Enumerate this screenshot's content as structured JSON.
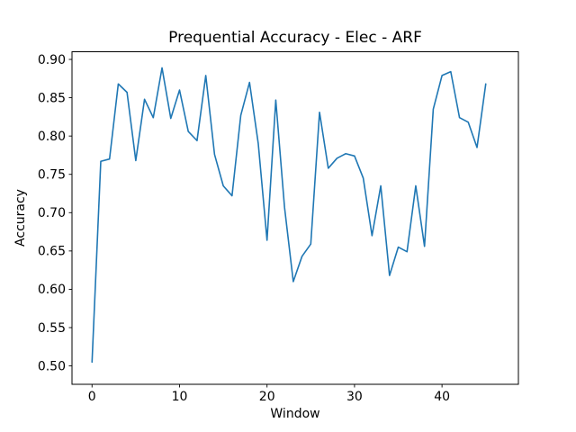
{
  "figure": {
    "background": "#ffffff",
    "spine_color": "#000000",
    "tick_color": "#000000"
  },
  "chart_data": {
    "type": "line",
    "title": "Prequential Accuracy - Elec - ARF",
    "xlabel": "Window",
    "ylabel": "Accuracy",
    "grid": false,
    "legend": null,
    "xlim": [
      -2.29,
      48.73
    ],
    "ylim": [
      0.476,
      0.91
    ],
    "xticks": [
      0,
      10,
      20,
      30,
      40
    ],
    "yticks": [
      0.5,
      0.55,
      0.6,
      0.65,
      0.7,
      0.75,
      0.8,
      0.85,
      0.9
    ],
    "x": [
      0,
      1,
      2,
      3,
      4,
      5,
      6,
      7,
      8,
      9,
      10,
      11,
      12,
      13,
      14,
      15,
      16,
      17,
      18,
      19,
      20,
      21,
      22,
      23,
      24,
      25,
      26,
      27,
      28,
      29,
      30,
      31,
      32,
      33,
      34,
      35,
      36,
      37,
      38,
      39,
      40,
      41,
      42,
      43,
      44,
      45
    ],
    "series": [
      {
        "name": "prequential-accuracy",
        "color": "#1f77b4",
        "values": [
          0.505,
          0.767,
          0.77,
          0.868,
          0.857,
          0.768,
          0.848,
          0.824,
          0.889,
          0.823,
          0.86,
          0.806,
          0.794,
          0.879,
          0.776,
          0.735,
          0.722,
          0.827,
          0.87,
          0.79,
          0.664,
          0.847,
          0.707,
          0.61,
          0.643,
          0.659,
          0.831,
          0.758,
          0.771,
          0.777,
          0.774,
          0.745,
          0.67,
          0.735,
          0.618,
          0.655,
          0.649,
          0.735,
          0.656,
          0.835,
          0.879,
          0.884,
          0.824,
          0.818,
          0.785,
          0.868
        ]
      }
    ]
  }
}
